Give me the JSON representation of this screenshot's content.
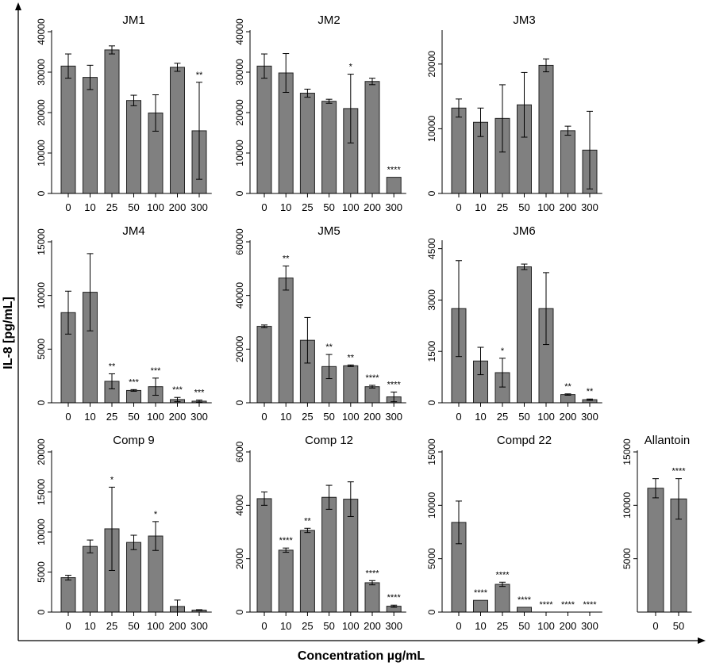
{
  "figure": {
    "ylabel": "IL-8 [pg/mL]",
    "xlabel": "Concentration µg/mL"
  },
  "chart_data": [
    {
      "type": "bar",
      "title": "JM1",
      "categories": [
        "0",
        "10",
        "25",
        "50",
        "100",
        "200",
        "300"
      ],
      "values": [
        31500,
        28700,
        35500,
        23000,
        19900,
        31200,
        15500
      ],
      "errors": [
        3000,
        3000,
        1000,
        1300,
        4500,
        1000,
        12000
      ],
      "significance": [
        "",
        "",
        "",
        "",
        "",
        "",
        "**"
      ],
      "ylim": [
        0,
        40000
      ],
      "yticks": [
        0,
        10000,
        20000,
        30000,
        40000
      ],
      "ylabel": "IL-8 [pg/mL]",
      "xlabel": "Concentration µg/mL"
    },
    {
      "type": "bar",
      "title": "JM2",
      "categories": [
        "0",
        "10",
        "25",
        "50",
        "100",
        "200",
        "300"
      ],
      "values": [
        31500,
        29800,
        24800,
        22800,
        21000,
        27700,
        4000
      ],
      "errors": [
        3000,
        4800,
        1000,
        500,
        8500,
        800,
        0
      ],
      "significance": [
        "",
        "",
        "",
        "",
        "*",
        "",
        "****"
      ],
      "ylim": [
        0,
        40000
      ],
      "yticks": [
        0,
        10000,
        20000,
        30000,
        40000
      ],
      "ylabel": "IL-8 [pg/mL]",
      "xlabel": "Concentration µg/mL"
    },
    {
      "type": "bar",
      "title": "JM3",
      "categories": [
        "0",
        "10",
        "25",
        "50",
        "100",
        "200",
        "300"
      ],
      "values": [
        13200,
        11000,
        11600,
        13700,
        19800,
        9700,
        6700
      ],
      "errors": [
        1400,
        2200,
        5200,
        5000,
        1000,
        700,
        6000
      ],
      "significance": [
        "",
        "",
        "",
        "",
        "",
        "",
        ""
      ],
      "ylim": [
        0,
        25000
      ],
      "yticks": [
        0,
        10000,
        20000
      ],
      "ylabel": "IL-8 [pg/mL]",
      "xlabel": "Concentration µg/mL"
    },
    {
      "type": "bar",
      "title": "JM4",
      "categories": [
        "0",
        "10",
        "25",
        "50",
        "100",
        "200",
        "300"
      ],
      "values": [
        8400,
        10300,
        2000,
        1150,
        1500,
        300,
        150
      ],
      "errors": [
        2000,
        3600,
        700,
        80,
        800,
        200,
        100
      ],
      "significance": [
        "",
        "",
        "**",
        "***",
        "***",
        "***",
        "***"
      ],
      "ylim": [
        0,
        15000
      ],
      "yticks": [
        0,
        5000,
        10000,
        15000
      ],
      "ylabel": "IL-8 [pg/mL]",
      "xlabel": "Concentration µg/mL"
    },
    {
      "type": "bar",
      "title": "JM5",
      "categories": [
        "0",
        "10",
        "25",
        "50",
        "100",
        "200",
        "300"
      ],
      "values": [
        28500,
        46500,
        23300,
        13500,
        13800,
        6000,
        2200
      ],
      "errors": [
        500,
        4500,
        8500,
        4500,
        300,
        500,
        1800
      ],
      "significance": [
        "",
        "**",
        "",
        "**",
        "**",
        "****",
        "****"
      ],
      "ylim": [
        0,
        60000
      ],
      "yticks": [
        0,
        20000,
        40000,
        60000
      ],
      "ylabel": "IL-8 [pg/mL]",
      "xlabel": "Concentration µg/mL"
    },
    {
      "type": "bar",
      "title": "JM6",
      "categories": [
        "0",
        "10",
        "25",
        "50",
        "100",
        "200",
        "300"
      ],
      "values": [
        2750,
        1220,
        880,
        3970,
        2750,
        240,
        90
      ],
      "errors": [
        1400,
        400,
        420,
        80,
        1050,
        20,
        20
      ],
      "significance": [
        "",
        "",
        "*",
        "",
        "",
        "**",
        "**"
      ],
      "ylim": [
        0,
        4700
      ],
      "yticks": [
        0,
        1500,
        3000,
        4500
      ],
      "ylabel": "IL-8 [pg/mL]",
      "xlabel": "Concentration µg/mL"
    },
    {
      "type": "bar",
      "title": "Comp 9",
      "categories": [
        "0",
        "10",
        "25",
        "50",
        "100",
        "200",
        "300"
      ],
      "values": [
        4300,
        8200,
        10400,
        8700,
        9500,
        700,
        250
      ],
      "errors": [
        300,
        800,
        5200,
        900,
        1800,
        800,
        50
      ],
      "significance": [
        "",
        "",
        "*",
        "",
        "*",
        "",
        ""
      ],
      "ylim": [
        0,
        20000
      ],
      "yticks": [
        0,
        5000,
        10000,
        15000,
        20000
      ],
      "ylabel": "IL-8 [pg/mL]",
      "xlabel": "Concentration µg/mL"
    },
    {
      "type": "bar",
      "title": "Comp 12",
      "categories": [
        "0",
        "10",
        "25",
        "50",
        "100",
        "200",
        "300"
      ],
      "values": [
        4250,
        2320,
        3060,
        4300,
        4230,
        1100,
        220
      ],
      "errors": [
        250,
        80,
        80,
        450,
        650,
        80,
        40
      ],
      "significance": [
        "",
        "****",
        "**",
        "",
        "",
        "****",
        "****"
      ],
      "ylim": [
        0,
        6000
      ],
      "yticks": [
        0,
        2000,
        4000,
        6000
      ],
      "ylabel": "IL-8 [pg/mL]",
      "xlabel": "Concentration µg/mL"
    },
    {
      "type": "bar",
      "title": "Compd 22",
      "categories": [
        "0",
        "10",
        "25",
        "50",
        "100",
        "200",
        "300"
      ],
      "values": [
        8400,
        1100,
        2600,
        450,
        0,
        0,
        0
      ],
      "errors": [
        2000,
        0,
        200,
        0,
        0,
        0,
        0
      ],
      "significance": [
        "",
        "****",
        "****",
        "****",
        "****",
        "****",
        "****"
      ],
      "ylim": [
        0,
        15000
      ],
      "yticks": [
        0,
        5000,
        10000,
        15000
      ],
      "ylabel": "IL-8 [pg/mL]",
      "xlabel": "Concentration µg/mL"
    },
    {
      "type": "bar",
      "title": "Allantoin",
      "categories": [
        "0",
        "50"
      ],
      "values": [
        11600,
        10600
      ],
      "errors": [
        900,
        1900
      ],
      "significance": [
        "",
        "****"
      ],
      "ylim": [
        0,
        15000
      ],
      "yticks": [
        5000,
        10000,
        15000
      ],
      "ylabel": "IL-8 [pg/mL]",
      "xlabel": "Concentration µg/mL"
    }
  ]
}
